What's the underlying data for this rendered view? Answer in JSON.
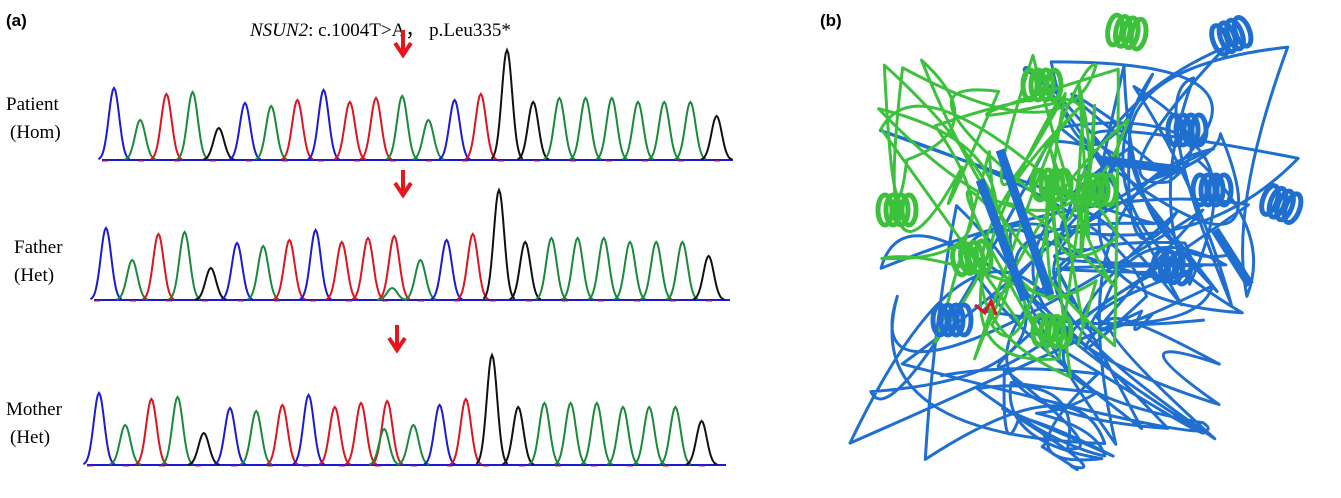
{
  "panel_a": {
    "label": "(a)",
    "title_gene": "NSUN2",
    "title_rest": ": c.1004T>A， p.Leu335*",
    "rows": [
      {
        "name": "Patient",
        "genotype": "(Hom)"
      },
      {
        "name": "Father",
        "genotype": "(Het)"
      },
      {
        "name": "Mother",
        "genotype": "(Het)"
      }
    ]
  },
  "panel_b": {
    "label": "(b)"
  }
}
